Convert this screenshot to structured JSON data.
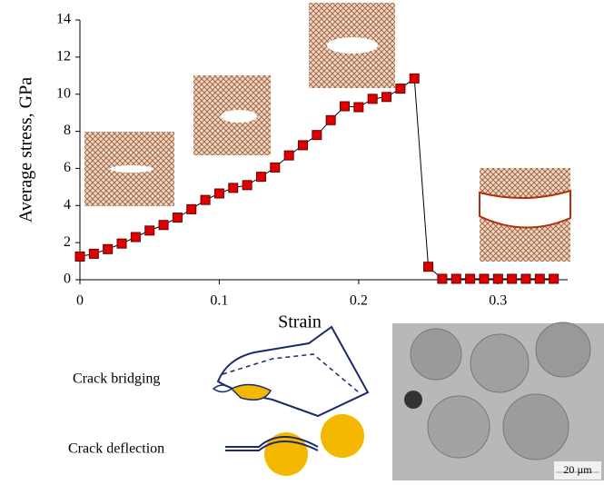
{
  "chart_data": {
    "type": "line",
    "x": [
      0,
      0.01,
      0.02,
      0.03,
      0.04,
      0.05,
      0.06,
      0.07,
      0.08,
      0.09,
      0.1,
      0.11,
      0.12,
      0.13,
      0.14,
      0.15,
      0.16,
      0.17,
      0.18,
      0.19,
      0.2,
      0.21,
      0.22,
      0.23,
      0.24,
      0.25,
      0.26,
      0.27,
      0.28,
      0.29,
      0.3,
      0.31,
      0.32,
      0.33,
      0.34
    ],
    "values": [
      1.25,
      1.4,
      1.65,
      1.95,
      2.3,
      2.65,
      2.95,
      3.35,
      3.8,
      4.3,
      4.65,
      4.95,
      5.1,
      5.55,
      6.05,
      6.7,
      7.25,
      7.8,
      8.6,
      9.35,
      9.3,
      9.75,
      9.85,
      10.3,
      10.85,
      0.7,
      0.05,
      0.05,
      0.05,
      0.05,
      0.05,
      0.05,
      0.05,
      0.05,
      0.05
    ],
    "color": "#e00000",
    "x_label": "Strain",
    "y_label": "Average stress,  GPa",
    "xlim": [
      0,
      0.35
    ],
    "xticks": [
      0,
      0.1,
      0.2,
      0.3
    ],
    "ylim": [
      0,
      14
    ],
    "yticks": [
      0,
      2,
      4,
      6,
      8,
      10,
      12,
      14
    ]
  },
  "diagram": {
    "bridging_label": "Crack bridging",
    "deflection_label": "Crack deflection",
    "scale_bar": "20 µm"
  }
}
